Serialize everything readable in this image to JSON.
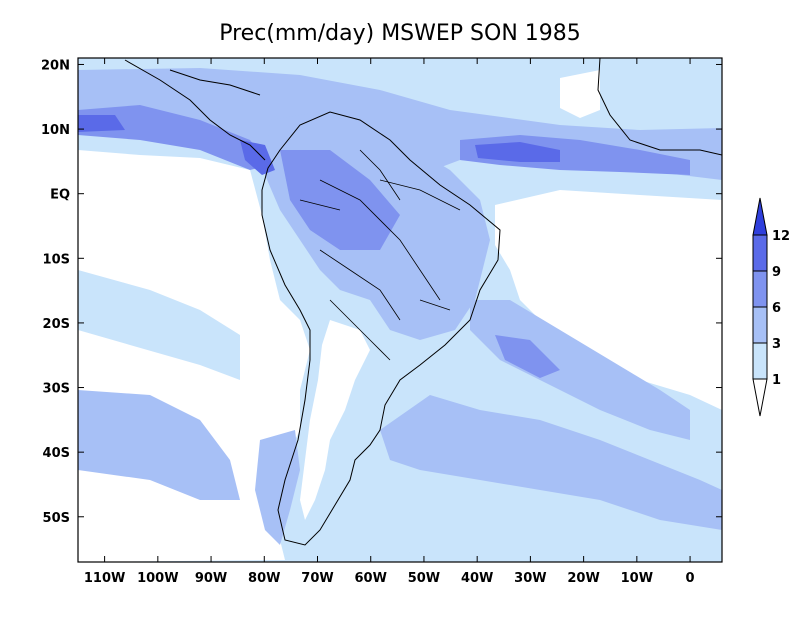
{
  "title": "Prec(mm/day) MSWEP SON 1985",
  "map": {
    "lon_range": [
      -115,
      6
    ],
    "lat_range": [
      -57,
      21
    ],
    "lon_ticks": [
      "110W",
      "100W",
      "90W",
      "80W",
      "70W",
      "60W",
      "50W",
      "40W",
      "30W",
      "20W",
      "10W",
      "0"
    ],
    "lat_ticks": [
      "20N",
      "10N",
      "EQ",
      "10S",
      "20S",
      "30S",
      "40S",
      "50S"
    ]
  },
  "colorbar": {
    "levels": [
      "1",
      "3",
      "6",
      "9",
      "12"
    ],
    "colors": [
      "#ffffff",
      "#c9e4fb",
      "#a7c0f6",
      "#7f93ef",
      "#5a6ae8",
      "#2f3fdc"
    ]
  }
}
